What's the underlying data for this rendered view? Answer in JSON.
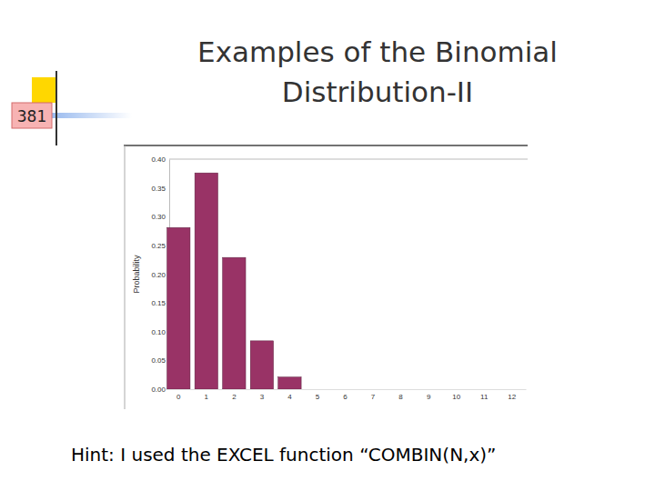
{
  "chart_data": {
    "type": "bar",
    "title": "Examples of the Binomial Distribution-II",
    "annotations": [
      "381",
      "Hint: I used the EXCEL function “COMBIN(N,x)”"
    ],
    "y_label": "Probability",
    "categories": [
      "0",
      "1",
      "2",
      "3",
      "4",
      "5",
      "6",
      "7",
      "8",
      "9",
      "10",
      "11",
      "12"
    ],
    "values": [
      0.281,
      0.376,
      0.229,
      0.084,
      0.021,
      0,
      0,
      0,
      0,
      0,
      0,
      0,
      0
    ],
    "color": "#993366",
    "ylim": [
      0,
      0.4
    ],
    "yticks": [
      {
        "value": 0,
        "label": "0.00"
      },
      {
        "value": 0.05,
        "label": "0.05"
      },
      {
        "value": 0.1,
        "label": "0.10"
      },
      {
        "value": 0.15,
        "label": "0.15"
      },
      {
        "value": 0.2,
        "label": "0.20"
      },
      {
        "value": 0.25,
        "label": "0.25"
      },
      {
        "value": 0.3,
        "label": "0.30"
      },
      {
        "value": 0.35,
        "label": "0.35"
      },
      {
        "value": 0.4,
        "label": "0.40"
      }
    ],
    "grid": false
  }
}
